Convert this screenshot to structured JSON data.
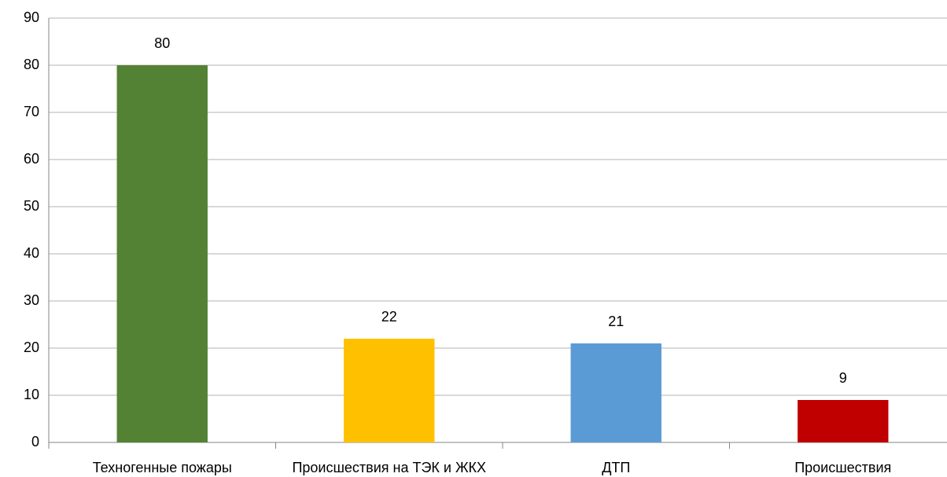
{
  "chart_data": {
    "type": "bar",
    "categories": [
      "Техногенные пожары",
      "Происшествия на ТЭК и ЖКХ",
      "ДТП",
      "Происшествия"
    ],
    "values": [
      80,
      22,
      21,
      9
    ],
    "colors": [
      "#548235",
      "#ffc000",
      "#5b9bd5",
      "#c00000"
    ],
    "ylim": [
      0,
      90
    ],
    "yticks": [
      0,
      10,
      20,
      30,
      40,
      50,
      60,
      70,
      80,
      90
    ],
    "grid": true
  }
}
